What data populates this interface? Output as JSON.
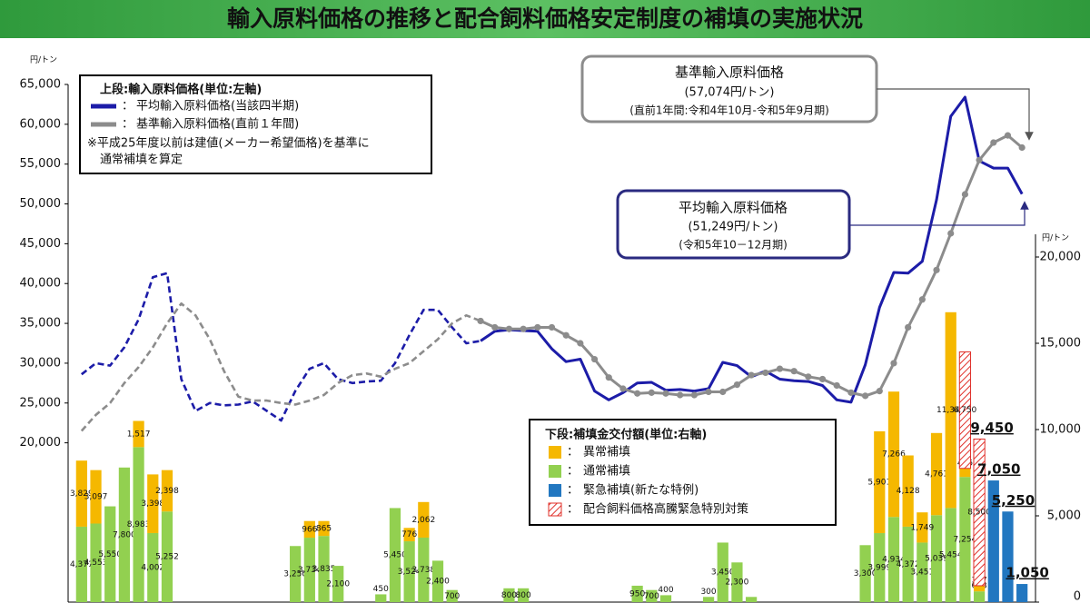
{
  "chart_data": {
    "type": "combo",
    "title": "輸入原料価格の推移と配合飼料価格安定制度の補填の実施状況",
    "y_unit": "円/トン",
    "y2_unit": "円/トン",
    "ylim": [
      0,
      65000
    ],
    "yticks": [
      {
        "value": 20000,
        "label": "20,000"
      },
      {
        "value": 25000,
        "label": "25,000"
      },
      {
        "value": 30000,
        "label": "30,000"
      },
      {
        "value": 35000,
        "label": "35,000"
      },
      {
        "value": 40000,
        "label": "40,000"
      },
      {
        "value": 45000,
        "label": "45,000"
      },
      {
        "value": 50000,
        "label": "50,000"
      },
      {
        "value": 55000,
        "label": "55,000"
      },
      {
        "value": 60000,
        "label": "60,000"
      },
      {
        "value": 65000,
        "label": "65,000"
      }
    ],
    "y2lim": [
      0,
      30000
    ],
    "y2ticks": [
      0,
      {
        "value": 5000,
        "label": "5,000"
      },
      {
        "value": 10000,
        "label": "10,000"
      },
      {
        "value": 15000,
        "label": "15,000"
      },
      {
        "value": 20000,
        "label": "20,000"
      }
    ],
    "categories": [
      null,
      null,
      null,
      null,
      null,
      null,
      null,
      null,
      null,
      null,
      null,
      null,
      null,
      null,
      null,
      null,
      null,
      null,
      null,
      null,
      null,
      null,
      null,
      null,
      null,
      null,
      null,
      null,
      null,
      null,
      null,
      null,
      null,
      null,
      null,
      null,
      null,
      null,
      null,
      null,
      null,
      null,
      null,
      null,
      null,
      null,
      null,
      null,
      null,
      null,
      null,
      null,
      null,
      null,
      null,
      null,
      null,
      null,
      null,
      null,
      null,
      null,
      null,
      null,
      null,
      null,
      null
    ],
    "lines": [
      {
        "name": "平均輸入原料価格(当該四半期)",
        "color": "#1c1ca8",
        "dashed_until": 28,
        "markers": false,
        "values": [
          28600,
          30000,
          29700,
          32000,
          35500,
          40800,
          41300,
          28000,
          24000,
          25000,
          24700,
          24800,
          25200,
          24000,
          22800,
          26500,
          29300,
          30000,
          28000,
          27500,
          27700,
          27800,
          30000,
          33500,
          36700,
          36700,
          34500,
          32500,
          32800,
          34000,
          34200,
          34100,
          34000,
          31800,
          30200,
          30500,
          26500,
          25400,
          26300,
          27500,
          27600,
          26600,
          26700,
          26500,
          26800,
          30100,
          29700,
          28300,
          29000,
          28000,
          27800,
          27700,
          27200,
          25400,
          25100,
          29800,
          37000,
          41400,
          41300,
          42800,
          50500,
          61000,
          63400,
          55400,
          54500,
          54500,
          51249
        ]
      },
      {
        "name": "基準輸入原料価格(直前１年間)",
        "color": "#8c8c8c",
        "dashed_until": 28,
        "markers": true,
        "values": [
          21500,
          23500,
          25000,
          27500,
          29500,
          32000,
          35000,
          37500,
          36000,
          33000,
          29000,
          25800,
          25300,
          25300,
          25000,
          24800,
          25300,
          26000,
          27500,
          28500,
          28700,
          28300,
          29300,
          30000,
          31500,
          33000,
          35000,
          36000,
          35300,
          34500,
          34300,
          34300,
          34500,
          34500,
          33500,
          32500,
          30500,
          28200,
          26800,
          26200,
          26300,
          26200,
          26000,
          26000,
          26400,
          26400,
          27300,
          28500,
          28800,
          29300,
          29000,
          28300,
          28000,
          27200,
          26300,
          25900,
          26500,
          30000,
          34500,
          38000,
          41700,
          46300,
          51200,
          55500,
          57700,
          58600,
          57074
        ]
      }
    ],
    "bars": [
      {
        "name": "通常補填",
        "color": "#92d050",
        "axis": "y2",
        "values": [
          4371,
          4553,
          5550,
          7800,
          8983,
          4002,
          5252,
          null,
          null,
          null,
          null,
          null,
          null,
          null,
          null,
          3250,
          3734,
          3835,
          2100,
          null,
          null,
          450,
          5450,
          3524,
          3738,
          2400,
          700,
          null,
          null,
          null,
          800,
          800,
          null,
          null,
          null,
          null,
          null,
          null,
          null,
          950,
          700,
          400,
          null,
          null,
          300,
          3450,
          2300,
          300,
          null,
          null,
          null,
          null,
          null,
          null,
          null,
          3300,
          3999,
          4934,
          4372,
          3451,
          5039,
          5454,
          7254,
          623,
          null,
          null,
          null
        ],
        "value_labels": [
          "4,371",
          "4,553",
          "5,550",
          "7,800",
          "8,983",
          "4,002",
          "5,252",
          null,
          null,
          null,
          null,
          null,
          null,
          null,
          null,
          "3,250",
          "3,734",
          "3,835",
          "2,100",
          null,
          null,
          "450",
          "5,450",
          "3,524",
          "3,738",
          "2,400",
          "700",
          null,
          null,
          null,
          "800",
          "800",
          null,
          null,
          null,
          null,
          null,
          null,
          null,
          "950",
          "700",
          "400",
          null,
          null,
          "300",
          "3,450",
          "2,300",
          null,
          null,
          null,
          null,
          null,
          null,
          null,
          null,
          "3,300",
          "3,999",
          "4,934",
          "4,372",
          "3,451",
          "5,039",
          "5,454",
          "7,254",
          "623",
          null,
          null,
          null
        ]
      },
      {
        "name": "異常補填",
        "color": "#f5b800",
        "axis": "y2",
        "values": [
          3829,
          3097,
          null,
          null,
          1517,
          3398,
          2398,
          null,
          null,
          null,
          null,
          null,
          null,
          null,
          null,
          null,
          966,
          865,
          null,
          null,
          null,
          null,
          null,
          776,
          2062,
          null,
          null,
          null,
          null,
          null,
          null,
          null,
          null,
          null,
          null,
          null,
          null,
          null,
          null,
          null,
          null,
          null,
          null,
          null,
          null,
          null,
          null,
          null,
          null,
          null,
          null,
          null,
          null,
          null,
          null,
          null,
          5901,
          7266,
          4128,
          1749,
          4761,
          11346,
          496,
          327,
          null,
          null,
          null
        ],
        "value_labels": [
          "3,829",
          "3,097",
          null,
          null,
          "1,517",
          "3,398",
          "2,398",
          null,
          null,
          null,
          null,
          null,
          null,
          null,
          null,
          null,
          "966",
          "865",
          null,
          null,
          null,
          null,
          null,
          "776",
          "2,062",
          null,
          null,
          null,
          null,
          null,
          null,
          null,
          null,
          null,
          null,
          null,
          null,
          null,
          null,
          null,
          null,
          null,
          null,
          null,
          null,
          null,
          null,
          null,
          null,
          null,
          null,
          null,
          null,
          null,
          null,
          null,
          "5,901",
          "7,266",
          "4,128",
          "1,749",
          "4,761",
          "11,346",
          "496",
          "327",
          null,
          null,
          null
        ]
      },
      {
        "name": "配合飼料価格高騰緊急特別対策",
        "color": "#e0302a",
        "axis": "y2",
        "pattern": "hatch",
        "values": [
          null,
          null,
          null,
          null,
          null,
          null,
          null,
          null,
          null,
          null,
          null,
          null,
          null,
          null,
          null,
          null,
          null,
          null,
          null,
          null,
          null,
          null,
          null,
          null,
          null,
          null,
          null,
          null,
          null,
          null,
          null,
          null,
          null,
          null,
          null,
          null,
          null,
          null,
          null,
          null,
          null,
          null,
          null,
          null,
          null,
          null,
          null,
          null,
          null,
          null,
          null,
          null,
          null,
          null,
          null,
          null,
          null,
          null,
          null,
          null,
          null,
          null,
          6750,
          8500,
          null,
          null,
          null
        ],
        "value_labels": [
          null,
          null,
          null,
          null,
          null,
          null,
          null,
          null,
          null,
          null,
          null,
          null,
          null,
          null,
          null,
          null,
          null,
          null,
          null,
          null,
          null,
          null,
          null,
          null,
          null,
          null,
          null,
          null,
          null,
          null,
          null,
          null,
          null,
          null,
          null,
          null,
          null,
          null,
          null,
          null,
          null,
          null,
          null,
          null,
          null,
          null,
          null,
          null,
          null,
          null,
          null,
          null,
          null,
          null,
          null,
          null,
          null,
          null,
          null,
          null,
          null,
          null,
          "6,750",
          "8,500",
          null,
          null,
          null
        ]
      },
      {
        "name": "緊急補填(新たな特例)",
        "color": "#2277c0",
        "axis": "y2",
        "emphasis": true,
        "values": [
          null,
          null,
          null,
          null,
          null,
          null,
          null,
          null,
          null,
          null,
          null,
          null,
          null,
          null,
          null,
          null,
          null,
          null,
          null,
          null,
          null,
          null,
          null,
          null,
          null,
          null,
          null,
          null,
          null,
          null,
          null,
          null,
          null,
          null,
          null,
          null,
          null,
          null,
          null,
          null,
          null,
          null,
          null,
          null,
          null,
          null,
          null,
          null,
          null,
          null,
          null,
          null,
          null,
          null,
          null,
          null,
          null,
          null,
          null,
          null,
          null,
          null,
          null,
          null,
          7050,
          5250,
          1050
        ],
        "value_labels": [
          null,
          null,
          null,
          null,
          null,
          null,
          null,
          null,
          null,
          null,
          null,
          null,
          null,
          null,
          null,
          null,
          null,
          null,
          null,
          null,
          null,
          null,
          null,
          null,
          null,
          null,
          null,
          null,
          null,
          null,
          null,
          null,
          null,
          null,
          null,
          null,
          null,
          null,
          null,
          null,
          null,
          null,
          null,
          null,
          null,
          null,
          null,
          null,
          null,
          null,
          null,
          null,
          null,
          null,
          null,
          null,
          null,
          null,
          null,
          null,
          null,
          null,
          null,
          null,
          "7,050",
          "5,250",
          "1,050"
        ]
      }
    ],
    "stack_total_labels": [
      null,
      null,
      null,
      null,
      null,
      null,
      null,
      null,
      null,
      null,
      null,
      null,
      null,
      null,
      null,
      null,
      null,
      null,
      null,
      null,
      null,
      null,
      null,
      null,
      null,
      null,
      null,
      null,
      null,
      null,
      null,
      null,
      null,
      null,
      null,
      null,
      null,
      null,
      null,
      null,
      null,
      null,
      null,
      null,
      null,
      null,
      null,
      null,
      null,
      null,
      null,
      null,
      null,
      null,
      null,
      null,
      null,
      null,
      null,
      null,
      null,
      null,
      null,
      "9,450",
      null,
      null,
      null
    ],
    "legend_separator": "：",
    "legend_top": {
      "title": "上段:輸入原料価格(単位:左軸)",
      "note": [
        "※平成25年度以前は建値(メーカー希望価格)を基準に",
        "通常補填を算定"
      ]
    },
    "legend_bottom": {
      "title": "下段:補填金交付額(単位:右軸)"
    },
    "annotations": [
      {
        "lines": [
          "基準輸入原料価格",
          "(57,074円/トン)",
          "(直前1年間:令和4年10月-令和5年9月期)"
        ]
      },
      {
        "lines": [
          "平均輸入原料価格",
          "(51,249円/トン)",
          "(令和5年10－12月期)"
        ]
      }
    ]
  }
}
